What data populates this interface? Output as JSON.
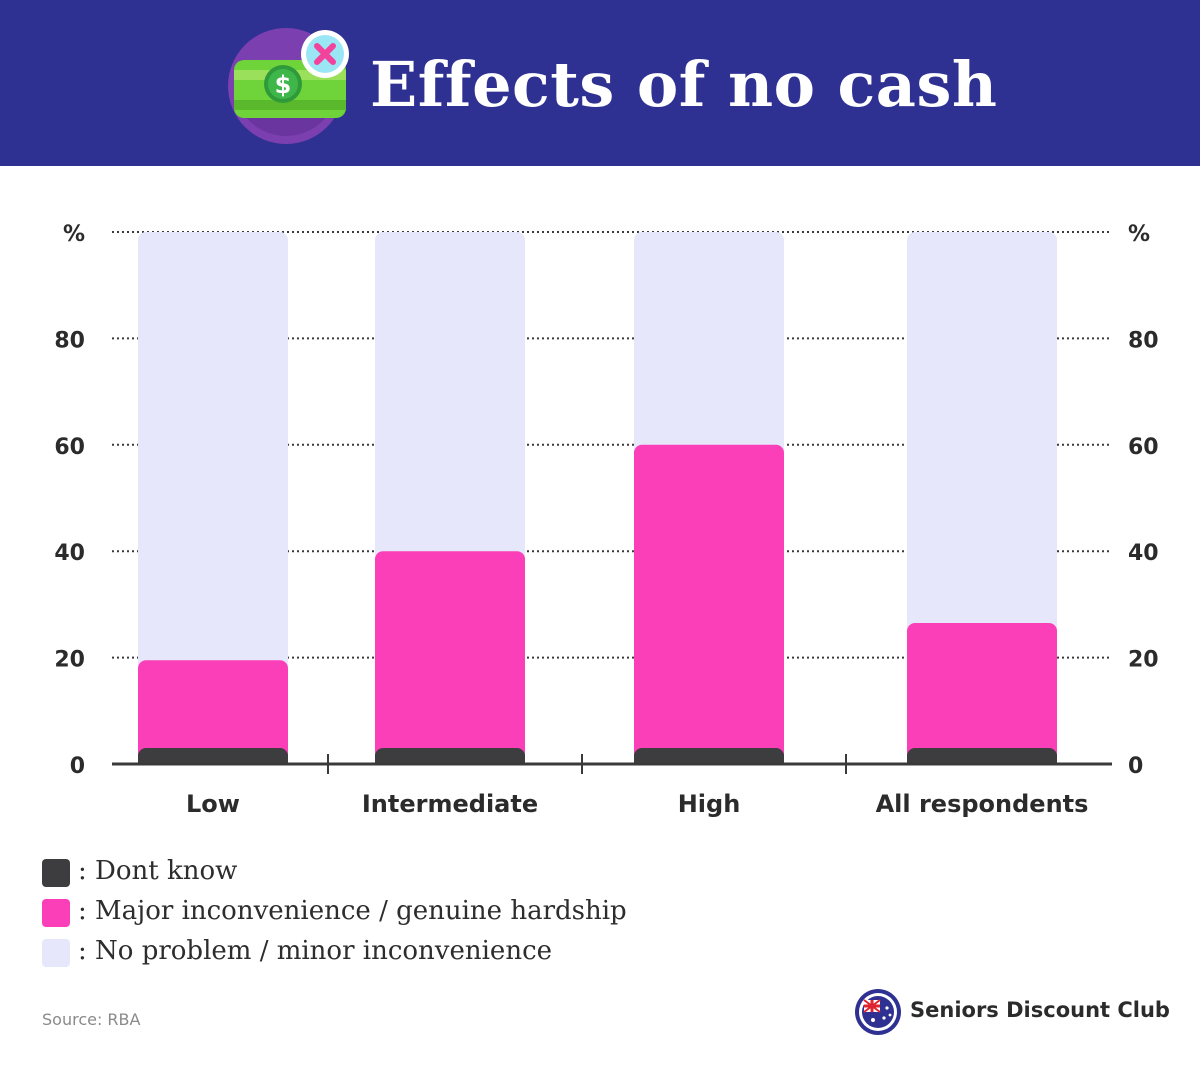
{
  "header": {
    "title": "Effects of no cash",
    "icon": "no-cash-money-icon"
  },
  "chart_data": {
    "type": "bar",
    "stacked": true,
    "categories": [
      "Low",
      "Intermediate",
      "High",
      "All respondents"
    ],
    "series": [
      {
        "name": "Dont know",
        "values": [
          3,
          3,
          3,
          3
        ],
        "color": "#3d3c3f"
      },
      {
        "name": "Major inconvenience / genuine hardship",
        "values": [
          16.5,
          37,
          57,
          23.5
        ],
        "color": "#fa3fb8"
      },
      {
        "name": "No problem / minor inconvenience",
        "values": [
          80.5,
          60,
          40,
          73.5
        ],
        "color": "#e7e7fc"
      }
    ],
    "yticks": [
      "0",
      "20",
      "40",
      "60",
      "80",
      "%"
    ],
    "ylim": [
      0,
      100
    ],
    "grid": true,
    "legend_position": "bottom-left"
  },
  "legend": {
    "separator": ": ",
    "items": [
      {
        "label": "Dont know",
        "color": "#3d3c3f"
      },
      {
        "label": "Major inconvenience / genuine hardship",
        "color": "#fa3fb8"
      },
      {
        "label": "No problem / minor inconvenience",
        "color": "#e7e7fc"
      }
    ]
  },
  "footer": {
    "source": "Source: RBA",
    "brand": "Seniors Discount Club",
    "brand_icon": "australia-flag-logo-icon"
  }
}
